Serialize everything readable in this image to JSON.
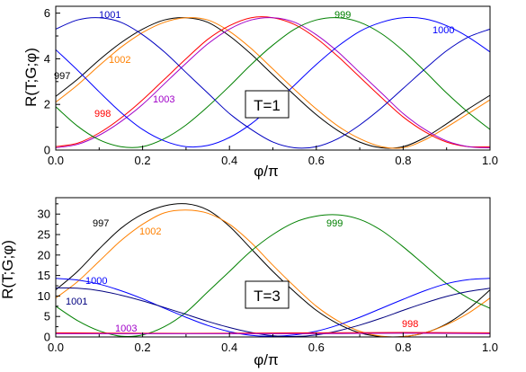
{
  "chart_data": [
    {
      "type": "line",
      "xlabel": "φ/π",
      "ylabel": "R(T;G;φ)",
      "xlim": [
        0,
        1
      ],
      "ylim": [
        0,
        6.3
      ],
      "x_ticks": [
        0.0,
        0.2,
        0.4,
        0.6,
        0.8,
        1.0
      ],
      "x_tick_labels": [
        "0.0",
        "0.2",
        "0.4",
        "0.6",
        "0.8",
        "1.0"
      ],
      "y_ticks": [
        0,
        2,
        4,
        6
      ],
      "y_tick_labels": [
        "0",
        "2",
        "4",
        "6"
      ],
      "annotation": "T=1",
      "grid": false,
      "legend": "inline labels",
      "series": [
        {
          "name": "997",
          "color": "#000000",
          "x": [
            0,
            0.05,
            0.1,
            0.15,
            0.2,
            0.25,
            0.3,
            0.35,
            0.4,
            0.45,
            0.5,
            0.55,
            0.6,
            0.65,
            0.7,
            0.75,
            0.8,
            0.85,
            0.9,
            0.95,
            1.0
          ],
          "y": [
            2.35,
            3.1,
            3.95,
            4.7,
            5.3,
            5.7,
            5.8,
            5.6,
            5.0,
            4.2,
            3.3,
            2.4,
            1.55,
            0.85,
            0.35,
            0.1,
            0.15,
            0.55,
            1.15,
            1.8,
            2.4
          ]
        },
        {
          "name": "1002",
          "color": "#ff8000",
          "x": [
            0,
            0.05,
            0.1,
            0.15,
            0.2,
            0.25,
            0.3,
            0.35,
            0.4,
            0.45,
            0.5,
            0.55,
            0.6,
            0.65,
            0.7,
            0.75,
            0.8,
            0.85,
            0.9,
            0.95,
            1.0
          ],
          "y": [
            2.1,
            2.85,
            3.7,
            4.5,
            5.15,
            5.6,
            5.8,
            5.7,
            5.2,
            4.45,
            3.55,
            2.65,
            1.8,
            1.05,
            0.5,
            0.15,
            0.1,
            0.45,
            1.0,
            1.6,
            2.2
          ]
        },
        {
          "name": "998",
          "color": "#ff0000",
          "x": [
            0,
            0.05,
            0.1,
            0.15,
            0.2,
            0.25,
            0.3,
            0.35,
            0.4,
            0.45,
            0.5,
            0.55,
            0.6,
            0.65,
            0.7,
            0.75,
            0.8,
            0.85,
            0.9,
            0.95,
            1.0
          ],
          "y": [
            0.15,
            0.3,
            0.75,
            1.4,
            2.2,
            3.1,
            4.0,
            4.85,
            5.45,
            5.8,
            5.8,
            5.5,
            4.9,
            4.1,
            3.2,
            2.3,
            1.45,
            0.8,
            0.35,
            0.15,
            0.15
          ]
        },
        {
          "name": "1003",
          "color": "#a000c8",
          "x": [
            0,
            0.05,
            0.1,
            0.15,
            0.2,
            0.25,
            0.3,
            0.35,
            0.4,
            0.45,
            0.5,
            0.55,
            0.6,
            0.65,
            0.7,
            0.75,
            0.8,
            0.85,
            0.9,
            0.95,
            1.0
          ],
          "y": [
            0.1,
            0.25,
            0.65,
            1.25,
            2.0,
            2.9,
            3.8,
            4.65,
            5.3,
            5.7,
            5.8,
            5.6,
            5.05,
            4.3,
            3.4,
            2.5,
            1.6,
            0.9,
            0.4,
            0.15,
            0.1
          ]
        },
        {
          "name": "999",
          "color": "#008000",
          "x": [
            0,
            0.05,
            0.1,
            0.15,
            0.2,
            0.25,
            0.3,
            0.35,
            0.4,
            0.45,
            0.5,
            0.55,
            0.6,
            0.65,
            0.7,
            0.75,
            0.8,
            0.85,
            0.9,
            0.95,
            1.0
          ],
          "y": [
            1.9,
            1.05,
            0.45,
            0.15,
            0.15,
            0.5,
            1.1,
            1.9,
            2.8,
            3.75,
            4.6,
            5.3,
            5.7,
            5.8,
            5.6,
            5.1,
            4.35,
            3.45,
            2.5,
            1.65,
            0.9
          ]
        },
        {
          "name": "1001",
          "color": "#0000c0",
          "x": [
            0,
            0.05,
            0.1,
            0.15,
            0.2,
            0.25,
            0.3,
            0.35,
            0.4,
            0.45,
            0.5,
            0.55,
            0.6,
            0.65,
            0.7,
            0.75,
            0.8,
            0.85,
            0.9,
            0.95,
            1.0
          ],
          "y": [
            5.3,
            5.7,
            5.8,
            5.6,
            5.05,
            4.3,
            3.4,
            2.5,
            1.6,
            0.9,
            0.35,
            0.1,
            0.15,
            0.5,
            1.1,
            1.85,
            2.7,
            3.55,
            4.35,
            4.95,
            5.3
          ]
        },
        {
          "name": "1000",
          "color": "#0000ff",
          "x": [
            0,
            0.05,
            0.1,
            0.15,
            0.2,
            0.25,
            0.3,
            0.35,
            0.4,
            0.45,
            0.5,
            0.55,
            0.6,
            0.65,
            0.7,
            0.75,
            0.8,
            0.85,
            0.9,
            0.95,
            1.0
          ],
          "y": [
            4.4,
            3.5,
            2.55,
            1.65,
            0.9,
            0.4,
            0.15,
            0.2,
            0.55,
            1.15,
            1.95,
            2.85,
            3.75,
            4.55,
            5.2,
            5.6,
            5.8,
            5.75,
            5.45,
            4.95,
            4.3
          ]
        }
      ]
    },
    {
      "type": "line",
      "xlabel": "φ/π",
      "ylabel": "R(T;G;φ)",
      "xlim": [
        0,
        1
      ],
      "ylim": [
        0,
        34
      ],
      "x_ticks": [
        0.0,
        0.2,
        0.4,
        0.6,
        0.8,
        1.0
      ],
      "x_tick_labels": [
        "0.0",
        "0.2",
        "0.4",
        "0.6",
        "0.8",
        "1.0"
      ],
      "y_ticks": [
        0,
        5,
        10,
        15,
        20,
        25,
        30
      ],
      "y_tick_labels": [
        "0",
        "5",
        "10",
        "15",
        "20",
        "25",
        "30"
      ],
      "annotation": "T=3",
      "grid": false,
      "legend": "inline labels",
      "series": [
        {
          "name": "997",
          "color": "#000000",
          "x": [
            0,
            0.05,
            0.1,
            0.15,
            0.2,
            0.25,
            0.3,
            0.35,
            0.4,
            0.45,
            0.5,
            0.55,
            0.6,
            0.65,
            0.7,
            0.75,
            0.8,
            0.85,
            0.9,
            0.95,
            1.0
          ],
          "y": [
            11.5,
            16.0,
            21.5,
            26.5,
            30.0,
            32.0,
            32.5,
            31.0,
            27.0,
            21.5,
            16.0,
            11.0,
            6.5,
            3.2,
            1.0,
            0.1,
            0.1,
            1.0,
            3.2,
            6.8,
            11.5
          ]
        },
        {
          "name": "1002",
          "color": "#ff8000",
          "x": [
            0,
            0.05,
            0.1,
            0.15,
            0.2,
            0.25,
            0.3,
            0.35,
            0.4,
            0.45,
            0.5,
            0.55,
            0.6,
            0.65,
            0.7,
            0.75,
            0.8,
            0.85,
            0.9,
            0.95,
            1.0
          ],
          "y": [
            9.5,
            13.5,
            18.5,
            23.5,
            27.5,
            30.3,
            31.0,
            30.2,
            27.5,
            23.0,
            17.5,
            12.3,
            7.5,
            3.9,
            1.4,
            0.2,
            0.1,
            1.0,
            3.0,
            5.8,
            9.5
          ]
        },
        {
          "name": "999",
          "color": "#008000",
          "x": [
            0,
            0.05,
            0.1,
            0.15,
            0.2,
            0.25,
            0.3,
            0.35,
            0.4,
            0.45,
            0.5,
            0.55,
            0.6,
            0.65,
            0.7,
            0.75,
            0.8,
            0.85,
            0.9,
            0.95,
            1.0
          ],
          "y": [
            7.5,
            4.0,
            1.5,
            0.2,
            0.5,
            2.5,
            6.0,
            11.0,
            16.0,
            21.0,
            25.0,
            28.0,
            29.5,
            29.8,
            28.7,
            26.0,
            22.0,
            17.5,
            13.0,
            9.5,
            7.0
          ]
        },
        {
          "name": "1000",
          "color": "#0000ff",
          "x": [
            0,
            0.05,
            0.1,
            0.15,
            0.2,
            0.25,
            0.3,
            0.35,
            0.4,
            0.45,
            0.5,
            0.55,
            0.6,
            0.65,
            0.7,
            0.75,
            0.8,
            0.85,
            0.9,
            0.95,
            1.0
          ],
          "y": [
            14.3,
            13.9,
            12.9,
            11.3,
            9.3,
            7.0,
            4.8,
            2.8,
            1.3,
            0.4,
            0.2,
            0.5,
            1.4,
            2.9,
            4.8,
            7.0,
            9.2,
            11.3,
            13.0,
            14.0,
            14.3
          ]
        },
        {
          "name": "1001",
          "color": "#000080",
          "x": [
            0,
            0.05,
            0.1,
            0.15,
            0.2,
            0.25,
            0.3,
            0.35,
            0.4,
            0.45,
            0.5,
            0.55,
            0.6,
            0.65,
            0.7,
            0.75,
            0.8,
            0.85,
            0.9,
            0.95,
            1.0
          ],
          "y": [
            12.0,
            11.9,
            11.3,
            10.2,
            8.8,
            7.2,
            5.5,
            3.8,
            2.3,
            1.1,
            0.3,
            0.1,
            0.5,
            1.5,
            2.9,
            4.6,
            6.5,
            8.3,
            9.9,
            11.1,
            11.9
          ]
        },
        {
          "name": "998",
          "color": "#ff0000",
          "x": [
            0,
            0.2,
            0.4,
            0.6,
            0.8,
            1.0
          ],
          "y": [
            1.0,
            0.9,
            0.9,
            1.0,
            1.1,
            1.0
          ]
        },
        {
          "name": "1003",
          "color": "#a000c8",
          "x": [
            0,
            0.2,
            0.4,
            0.6,
            0.8,
            1.0
          ],
          "y": [
            0.8,
            0.8,
            0.8,
            0.8,
            0.9,
            0.8
          ]
        }
      ]
    }
  ]
}
